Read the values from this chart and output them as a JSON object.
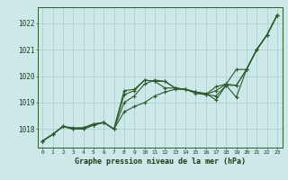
{
  "xlabel": "Graphe pression niveau de la mer (hPa)",
  "background_color": "#cce8e8",
  "grid_color": "#aacccc",
  "line_color": "#2d5a2d",
  "x": [
    0,
    1,
    2,
    3,
    4,
    5,
    6,
    7,
    8,
    9,
    10,
    11,
    12,
    13,
    14,
    15,
    16,
    17,
    18,
    19,
    20,
    21,
    22,
    23
  ],
  "series": [
    [
      1017.55,
      1017.8,
      1018.1,
      1018.0,
      1018.0,
      1018.15,
      1018.25,
      1018.0,
      1018.65,
      1018.85,
      1019.0,
      1019.25,
      1019.4,
      1019.5,
      1019.5,
      1019.4,
      1019.35,
      1019.1,
      1019.65,
      1019.2,
      1020.25,
      1021.0,
      1021.55,
      1022.3
    ],
    [
      1017.55,
      1017.8,
      1018.1,
      1018.0,
      1018.0,
      1018.15,
      1018.25,
      1018.0,
      1019.0,
      1019.25,
      1019.7,
      1019.85,
      1019.8,
      1019.55,
      1019.5,
      1019.4,
      1019.3,
      1019.25,
      1019.65,
      1019.65,
      1020.25,
      1021.0,
      1021.55,
      1022.3
    ],
    [
      1017.55,
      1017.8,
      1018.1,
      1018.0,
      1018.05,
      1018.2,
      1018.25,
      1018.0,
      1019.3,
      1019.45,
      1019.85,
      1019.8,
      1019.8,
      1019.55,
      1019.5,
      1019.4,
      1019.3,
      1019.45,
      1019.7,
      1019.65,
      1020.25,
      1021.0,
      1021.55,
      1022.3
    ],
    [
      1017.55,
      1017.8,
      1018.1,
      1018.05,
      1018.05,
      1018.15,
      1018.25,
      1018.0,
      1019.45,
      1019.5,
      1019.85,
      1019.8,
      1019.55,
      1019.55,
      1019.5,
      1019.35,
      1019.3,
      1019.6,
      1019.7,
      1020.25,
      1020.25,
      1021.0,
      1021.55,
      1022.3
    ]
  ],
  "ylim": [
    1017.3,
    1022.6
  ],
  "yticks": [
    1018,
    1019,
    1020,
    1021,
    1022
  ],
  "xlim": [
    -0.5,
    23.5
  ]
}
